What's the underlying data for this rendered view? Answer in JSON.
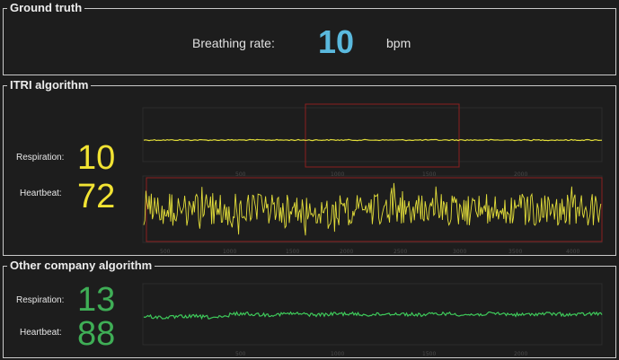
{
  "ground_truth": {
    "title": "Ground truth",
    "label": "Breathing rate:",
    "value": "10",
    "unit": "bpm"
  },
  "itri": {
    "title": "ITRI algorithm",
    "respiration_label": "Respiration:",
    "respiration_value": "10",
    "heartbeat_label": "Heartbeat:",
    "heartbeat_value": "72",
    "trace_color": "#e3de3a",
    "box_color": "#8a2020"
  },
  "other": {
    "title": "Other company algorithm",
    "respiration_label": "Respiration:",
    "respiration_value": "13",
    "heartbeat_label": "Heartbeat:",
    "heartbeat_value": "88",
    "trace_color": "#3ec95a"
  },
  "colors": {
    "background": "#1d1d1d",
    "accent_blue": "#5ab9de",
    "yellow": "#f2e333",
    "green": "#3fae56"
  }
}
